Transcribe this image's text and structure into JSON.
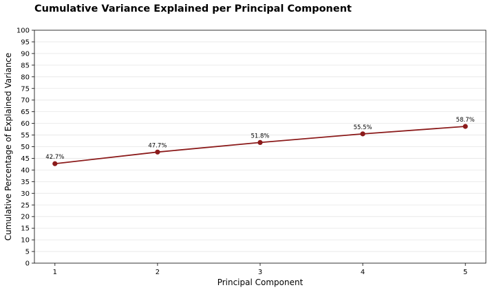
{
  "chart_data": {
    "type": "line",
    "title": "Cumulative Variance Explained per Principal Component",
    "xlabel": "Principal Component",
    "ylabel": "Cumulative Percentage of Explained Variance",
    "x": [
      1,
      2,
      3,
      4,
      5
    ],
    "ylim": [
      0,
      100
    ],
    "yticks": [
      0,
      5,
      10,
      15,
      20,
      25,
      30,
      35,
      40,
      45,
      50,
      55,
      60,
      65,
      70,
      75,
      80,
      85,
      90,
      95,
      100
    ],
    "series": [
      {
        "values": [
          42.7,
          47.7,
          51.8,
          55.5,
          58.7
        ],
        "labels": [
          "42.7%",
          "47.7%",
          "51.8%",
          "55.5%",
          "58.7%"
        ],
        "color": "#8b1a1a",
        "marker": "circle"
      }
    ],
    "grid": "horizontal",
    "grid_color": "#e5e5e5"
  }
}
